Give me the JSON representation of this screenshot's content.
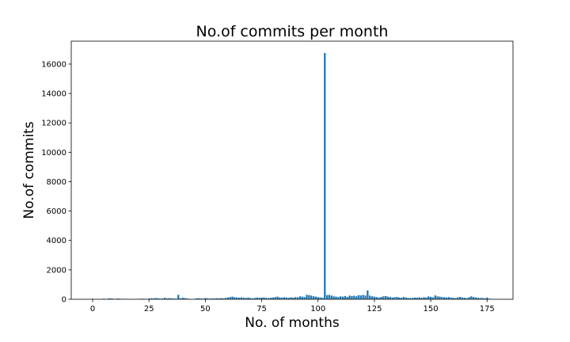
{
  "chart_data": {
    "type": "bar",
    "title": "No.of commits per month",
    "xlabel": "No. of months",
    "ylabel": "No.of commits",
    "color": "#1f77b4",
    "x": [
      0,
      1,
      2,
      3,
      4,
      5,
      6,
      7,
      8,
      9,
      10,
      11,
      12,
      13,
      14,
      15,
      16,
      17,
      18,
      19,
      20,
      21,
      22,
      23,
      24,
      25,
      26,
      27,
      28,
      29,
      30,
      31,
      32,
      33,
      34,
      35,
      36,
      37,
      38,
      39,
      40,
      41,
      42,
      43,
      44,
      45,
      46,
      47,
      48,
      49,
      50,
      51,
      52,
      53,
      54,
      55,
      56,
      57,
      58,
      59,
      60,
      61,
      62,
      63,
      64,
      65,
      66,
      67,
      68,
      69,
      70,
      71,
      72,
      73,
      74,
      75,
      76,
      77,
      78,
      79,
      80,
      81,
      82,
      83,
      84,
      85,
      86,
      87,
      88,
      89,
      90,
      91,
      92,
      93,
      94,
      95,
      96,
      97,
      98,
      99,
      100,
      101,
      102,
      103,
      104,
      105,
      106,
      107,
      108,
      109,
      110,
      111,
      112,
      113,
      114,
      115,
      116,
      117,
      118,
      119,
      120,
      121,
      122,
      123,
      124,
      125,
      126,
      127,
      128,
      129,
      130,
      131,
      132,
      133,
      134,
      135,
      136,
      137,
      138,
      139,
      140,
      141,
      142,
      143,
      144,
      145,
      146,
      147,
      148,
      149,
      150,
      151,
      152,
      153,
      154,
      155,
      156,
      157,
      158,
      159,
      160,
      161,
      162,
      163,
      164,
      165,
      166,
      167,
      168,
      169,
      170,
      171,
      172,
      173,
      174,
      175,
      176
    ],
    "values": [
      30,
      0,
      0,
      0,
      0,
      40,
      0,
      50,
      60,
      40,
      0,
      50,
      40,
      0,
      30,
      0,
      0,
      0,
      0,
      0,
      0,
      30,
      40,
      30,
      0,
      50,
      60,
      60,
      80,
      70,
      40,
      50,
      100,
      60,
      80,
      60,
      50,
      40,
      300,
      60,
      100,
      80,
      50,
      20,
      0,
      0,
      60,
      70,
      50,
      40,
      80,
      60,
      40,
      60,
      50,
      70,
      60,
      80,
      60,
      90,
      120,
      150,
      180,
      140,
      120,
      110,
      130,
      100,
      90,
      120,
      80,
      60,
      90,
      120,
      100,
      110,
      130,
      90,
      80,
      100,
      120,
      150,
      180,
      130,
      110,
      140,
      120,
      100,
      130,
      110,
      150,
      130,
      200,
      180,
      150,
      300,
      280,
      250,
      200,
      180,
      150,
      120,
      100,
      16750,
      280,
      300,
      250,
      200,
      180,
      150,
      200,
      180,
      220,
      160,
      250,
      220,
      240,
      200,
      280,
      260,
      300,
      250,
      600,
      250,
      200,
      180,
      150,
      120,
      160,
      200,
      220,
      180,
      150,
      120,
      140,
      160,
      130,
      100,
      150,
      120,
      90,
      80,
      100,
      120,
      110,
      130,
      100,
      140,
      120,
      200,
      160,
      130,
      260,
      200,
      180,
      150,
      140,
      120,
      150,
      110,
      100,
      80,
      130,
      160,
      120,
      100,
      80,
      140,
      200,
      150,
      120,
      100,
      80,
      90,
      60,
      120,
      40
    ],
    "xlim": [
      -9.5,
      186.5
    ],
    "ylim": [
      0,
      17560
    ],
    "xticks": [
      0,
      25,
      50,
      75,
      100,
      125,
      150,
      175
    ],
    "yticks": [
      0,
      2000,
      4000,
      6000,
      8000,
      10000,
      12000,
      14000,
      16000
    ]
  }
}
